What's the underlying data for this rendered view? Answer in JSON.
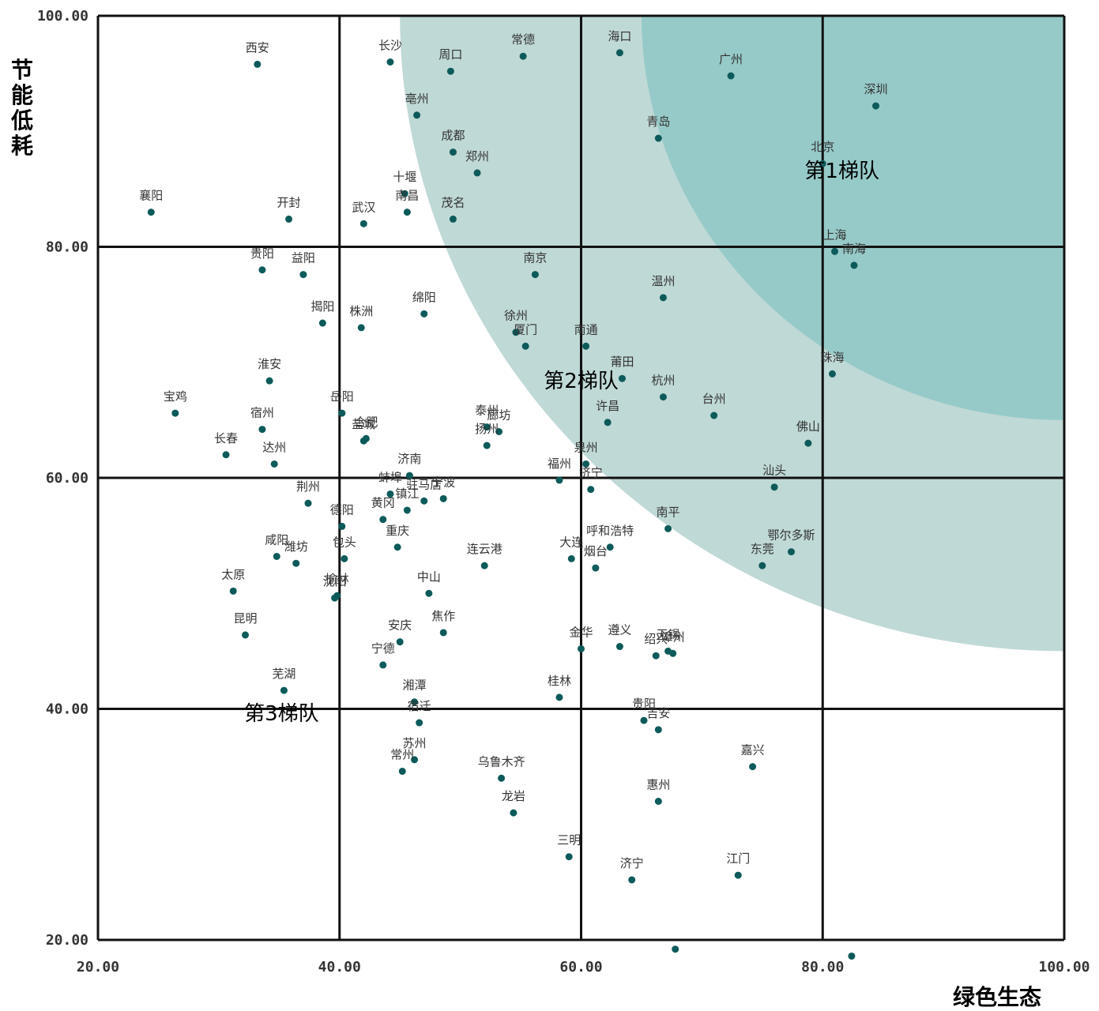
{
  "chart_data": {
    "type": "scatter",
    "xlabel": "绿色生态",
    "ylabel": "节能低耗",
    "xlim": [
      20,
      100
    ],
    "ylim": [
      20,
      100
    ],
    "x_ticks": [
      "20.00",
      "40.00",
      "60.00",
      "80.00",
      "100.00"
    ],
    "y_ticks": [
      "20.00",
      "40.00",
      "60.00",
      "80.00",
      "100.00"
    ],
    "grid": true,
    "colors": {
      "point": "#0d5a5a",
      "band_outer": "#bfd9d6",
      "band_inner": "#96cac8"
    },
    "bands": [
      {
        "label": "第1梯队",
        "center": [
          100,
          100
        ],
        "radius": 35.0,
        "label_at": [
          81.6,
          86.0
        ]
      },
      {
        "label": "第2梯队",
        "center": [
          100,
          100
        ],
        "radius": 55.0,
        "label_at": [
          60.0,
          67.8
        ]
      },
      {
        "label": "第3梯队",
        "label_at": [
          35.2,
          39.0
        ]
      }
    ],
    "points": [
      {
        "name": "西安",
        "x": 33.2,
        "y": 95.8
      },
      {
        "name": "长沙",
        "x": 44.2,
        "y": 96.0
      },
      {
        "name": "周口",
        "x": 49.2,
        "y": 95.2
      },
      {
        "name": "常德",
        "x": 55.2,
        "y": 96.5
      },
      {
        "name": "海口",
        "x": 63.2,
        "y": 96.8
      },
      {
        "name": "广州",
        "x": 72.4,
        "y": 94.8
      },
      {
        "name": "深圳",
        "x": 84.4,
        "y": 92.2
      },
      {
        "name": "亳州",
        "x": 46.4,
        "y": 91.4
      },
      {
        "name": "青岛",
        "x": 66.4,
        "y": 89.4
      },
      {
        "name": "成都",
        "x": 49.4,
        "y": 88.2
      },
      {
        "name": "郑州",
        "x": 51.4,
        "y": 86.4
      },
      {
        "name": "北京",
        "x": 80.0,
        "y": 87.2
      },
      {
        "name": "十堰",
        "x": 45.4,
        "y": 84.6
      },
      {
        "name": "襄阳",
        "x": 24.4,
        "y": 83.0
      },
      {
        "name": "开封",
        "x": 35.8,
        "y": 82.4
      },
      {
        "name": "茂名",
        "x": 49.4,
        "y": 82.4
      },
      {
        "name": "武汉",
        "x": 42.0,
        "y": 82.0
      },
      {
        "name": "南昌",
        "x": 45.6,
        "y": 83.0
      },
      {
        "name": "上海",
        "x": 81.0,
        "y": 79.6
      },
      {
        "name": "南海",
        "x": 82.6,
        "y": 78.4
      },
      {
        "name": "贵阳",
        "x": 33.6,
        "y": 78.0
      },
      {
        "name": "益阳",
        "x": 37.0,
        "y": 77.6
      },
      {
        "name": "南京",
        "x": 56.2,
        "y": 77.6
      },
      {
        "name": "温州",
        "x": 66.8,
        "y": 75.6
      },
      {
        "name": "揭阳",
        "x": 38.6,
        "y": 73.4
      },
      {
        "name": "株洲",
        "x": 41.8,
        "y": 73.0
      },
      {
        "name": "绵阳",
        "x": 47.0,
        "y": 74.2
      },
      {
        "name": "徐州",
        "x": 54.6,
        "y": 72.6
      },
      {
        "name": "厦门",
        "x": 55.4,
        "y": 71.4
      },
      {
        "name": "南通",
        "x": 60.4,
        "y": 71.4
      },
      {
        "name": "珠海",
        "x": 80.8,
        "y": 69.0
      },
      {
        "name": "莆田",
        "x": 63.4,
        "y": 68.6
      },
      {
        "name": "淮安",
        "x": 34.2,
        "y": 68.4
      },
      {
        "name": "杭州",
        "x": 66.8,
        "y": 67.0
      },
      {
        "name": "宝鸡",
        "x": 26.4,
        "y": 65.6
      },
      {
        "name": "宿州",
        "x": 33.6,
        "y": 64.2
      },
      {
        "name": "岳阳",
        "x": 40.2,
        "y": 65.6
      },
      {
        "name": "台州",
        "x": 71.0,
        "y": 65.4
      },
      {
        "name": "许昌",
        "x": 62.2,
        "y": 64.8
      },
      {
        "name": "盐城",
        "x": 42.0,
        "y": 63.2
      },
      {
        "name": "合肥",
        "x": 42.2,
        "y": 63.4
      },
      {
        "name": "泰州",
        "x": 52.2,
        "y": 64.4
      },
      {
        "name": "廊坊",
        "x": 53.2,
        "y": 64.0
      },
      {
        "name": "长春",
        "x": 30.6,
        "y": 62.0
      },
      {
        "name": "达州",
        "x": 34.6,
        "y": 61.2
      },
      {
        "name": "扬州",
        "x": 52.2,
        "y": 62.8
      },
      {
        "name": "佛山",
        "x": 78.8,
        "y": 63.0
      },
      {
        "name": "泉州",
        "x": 60.4,
        "y": 61.2
      },
      {
        "name": "济南",
        "x": 45.8,
        "y": 60.2
      },
      {
        "name": "福州",
        "x": 58.2,
        "y": 59.8
      },
      {
        "name": "汕头",
        "x": 76.0,
        "y": 59.2
      },
      {
        "name": "蚌埠",
        "x": 44.2,
        "y": 58.6
      },
      {
        "name": "宁波",
        "x": 48.6,
        "y": 58.2
      },
      {
        "name": "济宁",
        "x": 60.8,
        "y": 59.0
      },
      {
        "name": "荆州",
        "x": 37.4,
        "y": 57.8
      },
      {
        "name": "镇江",
        "x": 45.6,
        "y": 57.2
      },
      {
        "name": "驻马店",
        "x": 47.0,
        "y": 58.0
      },
      {
        "name": "黄冈",
        "x": 43.6,
        "y": 56.4
      },
      {
        "name": "德阳",
        "x": 40.2,
        "y": 55.8
      },
      {
        "name": "南平",
        "x": 67.2,
        "y": 55.6
      },
      {
        "name": "重庆",
        "x": 44.8,
        "y": 54.0
      },
      {
        "name": "包头",
        "x": 40.4,
        "y": 53.0
      },
      {
        "name": "呼和浩特",
        "x": 62.4,
        "y": 54.0
      },
      {
        "name": "鄂尔多斯",
        "x": 77.4,
        "y": 53.6
      },
      {
        "name": "咸阳",
        "x": 34.8,
        "y": 53.2
      },
      {
        "name": "潍坊",
        "x": 36.4,
        "y": 52.6
      },
      {
        "name": "连云港",
        "x": 52.0,
        "y": 52.4
      },
      {
        "name": "大连",
        "x": 59.2,
        "y": 53.0
      },
      {
        "name": "烟台",
        "x": 61.2,
        "y": 52.2
      },
      {
        "name": "东莞",
        "x": 75.0,
        "y": 52.4
      },
      {
        "name": "太原",
        "x": 31.2,
        "y": 50.2
      },
      {
        "name": "沈阳",
        "x": 39.6,
        "y": 49.6
      },
      {
        "name": "榆林",
        "x": 39.8,
        "y": 49.8
      },
      {
        "name": "中山",
        "x": 47.4,
        "y": 50.0
      },
      {
        "name": "昆明",
        "x": 32.2,
        "y": 46.4
      },
      {
        "name": "焦作",
        "x": 48.6,
        "y": 46.6
      },
      {
        "name": "安庆",
        "x": 45.0,
        "y": 45.8
      },
      {
        "name": "金华",
        "x": 60.0,
        "y": 45.2
      },
      {
        "name": "遵义",
        "x": 63.2,
        "y": 45.4
      },
      {
        "name": "绍兴",
        "x": 66.2,
        "y": 44.6
      },
      {
        "name": "无锡",
        "x": 67.2,
        "y": 45.0
      },
      {
        "name": "漳州",
        "x": 67.6,
        "y": 44.8
      },
      {
        "name": "宁德",
        "x": 43.6,
        "y": 43.8
      },
      {
        "name": "芜湖",
        "x": 35.4,
        "y": 41.6
      },
      {
        "name": "湘潭",
        "x": 46.2,
        "y": 40.6
      },
      {
        "name": "桂林",
        "x": 58.2,
        "y": 41.0
      },
      {
        "name": "宿迁",
        "x": 46.6,
        "y": 38.8
      },
      {
        "name": "贵阳",
        "x": 65.2,
        "y": 39.0
      },
      {
        "name": "吉安",
        "x": 66.4,
        "y": 38.2
      },
      {
        "name": "苏州",
        "x": 46.2,
        "y": 35.6
      },
      {
        "name": "常州",
        "x": 45.2,
        "y": 34.6
      },
      {
        "name": "嘉兴",
        "x": 74.2,
        "y": 35.0
      },
      {
        "name": "乌鲁木齐",
        "x": 53.4,
        "y": 34.0
      },
      {
        "name": "惠州",
        "x": 66.4,
        "y": 32.0
      },
      {
        "name": "龙岩",
        "x": 54.4,
        "y": 31.0
      },
      {
        "name": "三明",
        "x": 59.0,
        "y": 27.2
      },
      {
        "name": "济宁",
        "x": 64.2,
        "y": 25.2
      },
      {
        "name": "江门",
        "x": 73.0,
        "y": 25.6
      },
      {
        "name": "",
        "x": 67.8,
        "y": 19.2
      },
      {
        "name": "",
        "x": 82.4,
        "y": 18.6
      }
    ]
  }
}
